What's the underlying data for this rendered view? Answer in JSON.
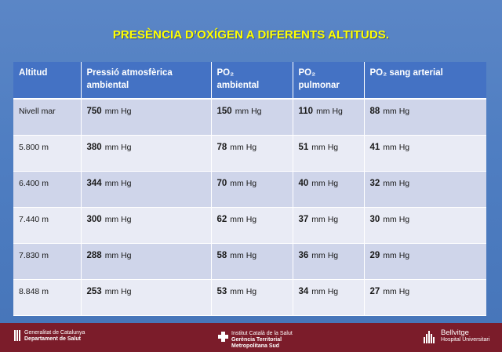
{
  "title": "PRESÈNCIA D’OXÍGEN A DIFERENTS ALTITUDS.",
  "table": {
    "headers": {
      "altitud": "Altitud",
      "pressio_1": "Pressió atmosfèrica",
      "pressio_2": "ambiental",
      "po2_amb_1": "PO₂",
      "po2_amb_2": "ambiental",
      "po2_pul_1": "PO₂",
      "po2_pul_2": "pulmonar",
      "po2_sang": "PO₂  sang arterial"
    },
    "unit": "mm Hg",
    "rows": [
      {
        "altitud": "Nivell  mar",
        "pressio": "750",
        "po2_ambiental": "150",
        "po2_pulmonar": "110",
        "po2_sang": "88"
      },
      {
        "altitud": "5.800 m",
        "pressio": "380",
        "po2_ambiental": "78",
        "po2_pulmonar": "51",
        "po2_sang": "41"
      },
      {
        "altitud": "6.400 m",
        "pressio": "344",
        "po2_ambiental": "70",
        "po2_pulmonar": "40",
        "po2_sang": "32"
      },
      {
        "altitud": "7.440 m",
        "pressio": "300",
        "po2_ambiental": "62",
        "po2_pulmonar": "37",
        "po2_sang": "30"
      },
      {
        "altitud": "7.830 m",
        "pressio": "288",
        "po2_ambiental": "58",
        "po2_pulmonar": "36",
        "po2_sang": "29"
      },
      {
        "altitud": "8.848 m",
        "pressio": "253",
        "po2_ambiental": "53",
        "po2_pulmonar": "34",
        "po2_sang": "27"
      }
    ]
  },
  "footer": {
    "gencat": {
      "line1": "Generalitat de Catalunya",
      "line2": "Departament de Salut"
    },
    "ics": {
      "line1": "Institut Català de la Salut",
      "line2": "Gerència Territorial",
      "line3": "Metropolitana Sud"
    },
    "bellvitge": {
      "line1": "Bellvitge",
      "line2": "Hospital Universitari"
    }
  },
  "colors": {
    "background": "#4b79bd",
    "title": "#ffff00",
    "header_row": "#4472c4",
    "row_odd": "#cfd5ea",
    "row_even": "#e9ebf5",
    "footer": "#7b1c2a"
  }
}
